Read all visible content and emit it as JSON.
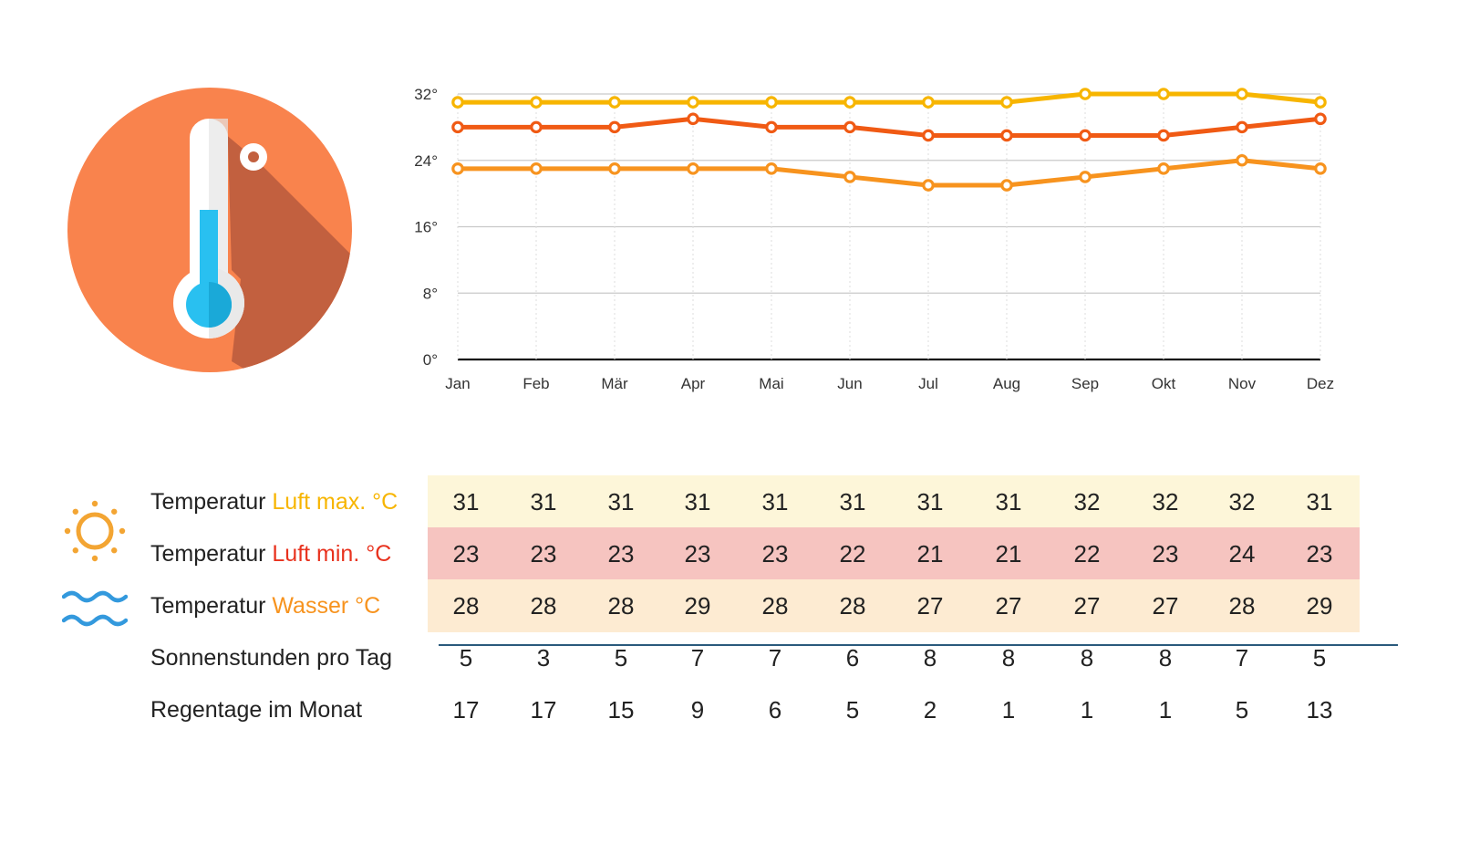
{
  "chart_data": {
    "type": "line",
    "categories": [
      "Jan",
      "Feb",
      "Mär",
      "Apr",
      "Mai",
      "Jun",
      "Jul",
      "Aug",
      "Sep",
      "Okt",
      "Nov",
      "Dez"
    ],
    "ylim": [
      0,
      32
    ],
    "yticks": [
      0,
      8,
      16,
      24,
      32
    ],
    "ytick_labels": [
      "0°",
      "8°",
      "16°",
      "24°",
      "32°"
    ],
    "series": [
      {
        "name": "Temperatur Luft max. °C",
        "color": "#f7b500",
        "values": [
          31,
          31,
          31,
          31,
          31,
          31,
          31,
          31,
          32,
          32,
          32,
          31
        ]
      },
      {
        "name": "Temperatur Wasser °C",
        "color": "#f05a14",
        "values": [
          28,
          28,
          28,
          29,
          28,
          28,
          27,
          27,
          27,
          27,
          28,
          29
        ]
      },
      {
        "name": "Temperatur Luft min. °C",
        "color": "#f7931e",
        "values": [
          23,
          23,
          23,
          23,
          23,
          22,
          21,
          21,
          22,
          23,
          24,
          23
        ]
      }
    ]
  },
  "table": {
    "rows": [
      {
        "prefix": "Temperatur ",
        "accent": "Luft max. °C",
        "accent_color": "#f7b500",
        "bg": "#fdf6d9",
        "icon": "sun-icon",
        "values": [
          "31",
          "31",
          "31",
          "31",
          "31",
          "31",
          "31",
          "31",
          "32",
          "32",
          "32",
          "31"
        ]
      },
      {
        "prefix": "Temperatur ",
        "accent": "Luft min. °C",
        "accent_color": "#e8321e",
        "bg": "#f6c4c0",
        "icon": "",
        "values": [
          "23",
          "23",
          "23",
          "23",
          "23",
          "22",
          "21",
          "21",
          "22",
          "23",
          "24",
          "23"
        ]
      },
      {
        "prefix": "Temperatur ",
        "accent": "Wasser °C",
        "accent_color": "#f7931e",
        "bg": "#fdebd2",
        "icon": "waves-icon",
        "values": [
          "28",
          "28",
          "28",
          "29",
          "28",
          "28",
          "27",
          "27",
          "27",
          "27",
          "28",
          "29"
        ]
      },
      {
        "prefix": "Sonnenstunden pro Tag",
        "accent": "",
        "accent_color": "#222222",
        "bg": "#ffffff",
        "icon": "",
        "values": [
          "5",
          "3",
          "5",
          "7",
          "7",
          "6",
          "8",
          "8",
          "8",
          "8",
          "7",
          "5"
        ]
      },
      {
        "prefix": "Regentage im Monat",
        "accent": "",
        "accent_color": "#222222",
        "bg": "#ffffff",
        "icon": "",
        "values": [
          "17",
          "17",
          "15",
          "9",
          "6",
          "5",
          "2",
          "1",
          "1",
          "1",
          "5",
          "13"
        ]
      }
    ]
  },
  "colors": {
    "circle": "#f9834d",
    "shadow": "#c2603f",
    "mercury": "#29c0f0",
    "tube": "#ffffff",
    "sun": "#f3a533",
    "waves": "#3399dd"
  },
  "icons": [
    "thermometer-icon",
    "sun-icon",
    "waves-icon"
  ]
}
